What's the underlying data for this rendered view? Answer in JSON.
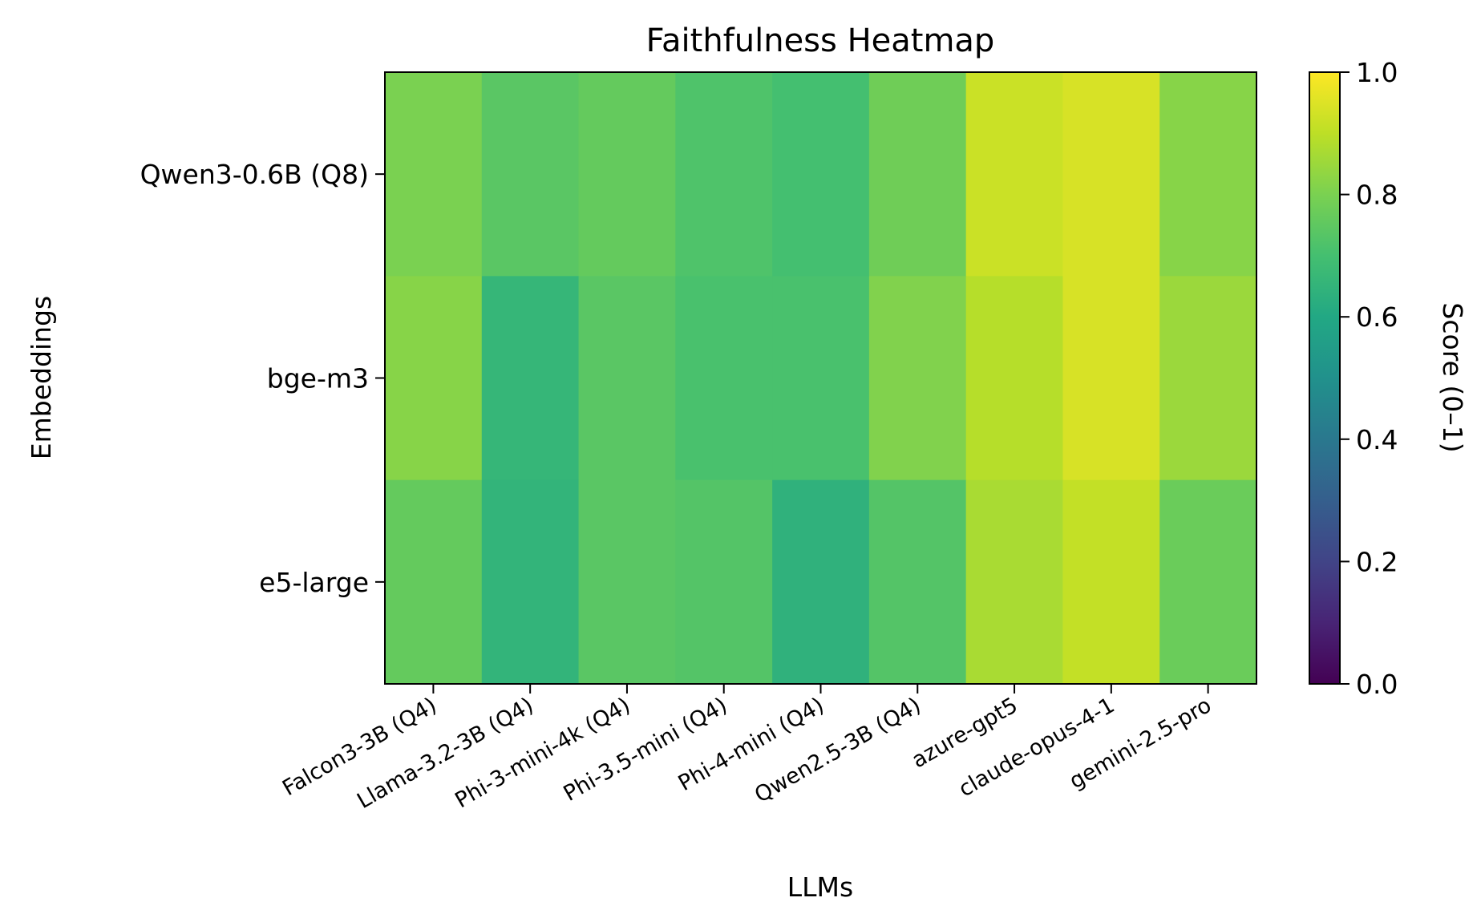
{
  "chart_data": {
    "type": "heatmap",
    "title": "Faithfulness Heatmap",
    "xlabel": "LLMs",
    "ylabel": "Embeddings",
    "x_categories": [
      "Falcon3-3B (Q4)",
      "Llama-3.2-3B (Q4)",
      "Phi-3-mini-4k (Q4)",
      "Phi-3.5-mini (Q4)",
      "Phi-4-mini (Q4)",
      "Qwen2.5-3B (Q4)",
      "azure-gpt5",
      "claude-opus-4-1",
      "gemini-2.5-pro"
    ],
    "y_categories": [
      "Qwen3-0.6B (Q8)",
      "bge-m3",
      "e5-large"
    ],
    "values": [
      [
        0.8,
        0.74,
        0.76,
        0.72,
        0.7,
        0.78,
        0.92,
        0.94,
        0.82
      ],
      [
        0.82,
        0.66,
        0.74,
        0.71,
        0.71,
        0.81,
        0.89,
        0.94,
        0.85
      ],
      [
        0.76,
        0.65,
        0.74,
        0.73,
        0.64,
        0.73,
        0.87,
        0.91,
        0.77
      ]
    ],
    "colorbar": {
      "label": "Score (0–1)",
      "range": [
        0,
        1
      ],
      "ticks": [
        "0.0",
        "0.2",
        "0.4",
        "0.6",
        "0.8",
        "1.0"
      ],
      "colormap": "viridis"
    }
  }
}
